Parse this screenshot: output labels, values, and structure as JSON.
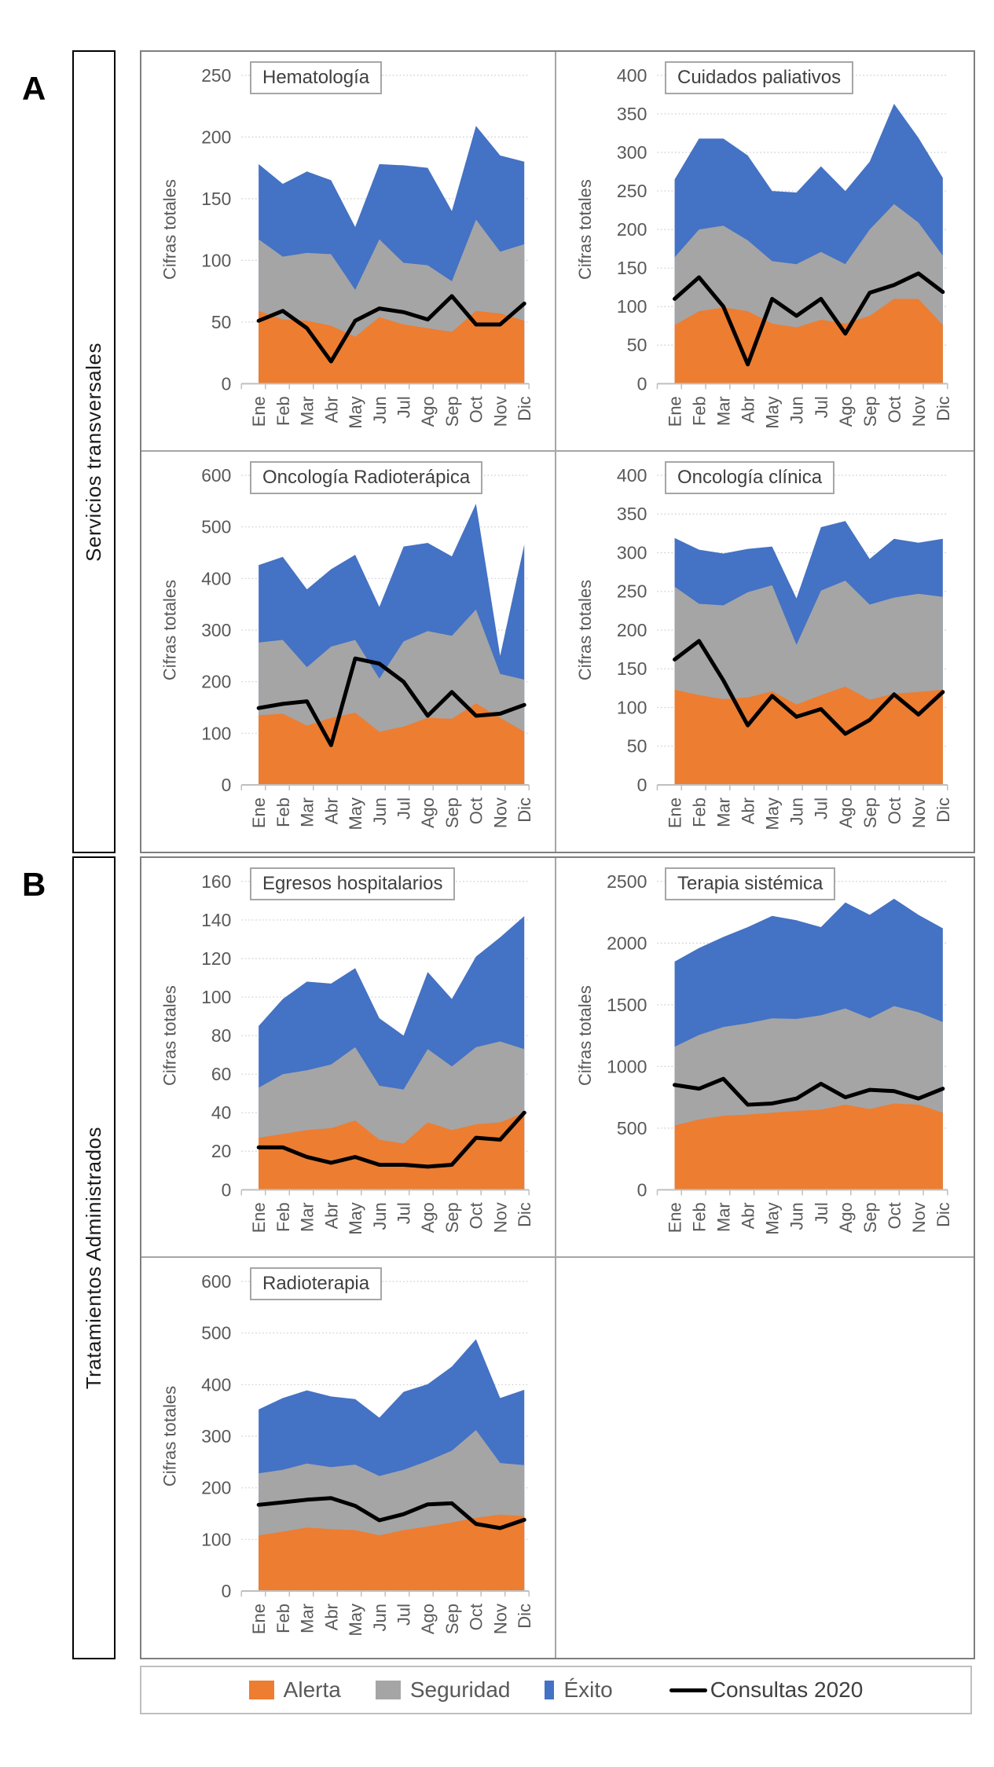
{
  "figure": {
    "type": "multi-panel stacked area charts",
    "background": "#FFFFFF"
  },
  "panels": [
    {
      "letter": "A",
      "label": "Servicios transversales"
    },
    {
      "letter": "B",
      "label": "Tratamientos Administrados"
    }
  ],
  "colors": {
    "alerta": "#ED7D31",
    "seguridad": "#A5A5A5",
    "exito": "#4472C4",
    "consultas": "#000000",
    "grid": "#C9C9C9",
    "axis_text": "#595959",
    "axis_line": "#BFBFBF",
    "title_text": "#404040",
    "panel_border": "#7F7F7F",
    "cell_border": "#A6A6A6"
  },
  "legend": {
    "items": [
      {
        "label": "Alerta",
        "swatch": "orange-square",
        "color": "#ED7D31"
      },
      {
        "label": "Seguridad",
        "swatch": "gray-square",
        "color": "#A5A5A5"
      },
      {
        "label": "Éxito",
        "swatch": "blue-bar",
        "color": "#4472C4"
      },
      {
        "label": "Consultas 2020",
        "swatch": "black-line",
        "color": "#000000"
      }
    ]
  },
  "chart_data": {
    "type": "area",
    "subtype": "stacked-area-with-line-overlay",
    "categories": [
      "Ene",
      "Feb",
      "Mar",
      "Abr",
      "May",
      "Jun",
      "Jul",
      "Ago",
      "Sep",
      "Oct",
      "Nov",
      "Dic"
    ],
    "ylabel": "Cifras totales",
    "grid": "dotted horizontal gridlines",
    "legend_position": "bottom",
    "stacked_series_names": [
      "Alerta",
      "Seguridad",
      "Éxito"
    ],
    "line_series_name": "Consultas 2020",
    "charts": [
      {
        "title": "Hematología",
        "panel": "A",
        "ymax": 250,
        "ystep": 50,
        "ylim": [
          0,
          250
        ],
        "series": {
          "alerta": [
            59,
            52,
            51,
            47,
            38,
            54,
            48,
            45,
            42,
            59,
            57,
            51
          ],
          "seguridad": [
            58,
            51,
            55,
            58,
            38,
            63,
            50,
            51,
            41,
            74,
            50,
            62
          ],
          "exito": [
            61,
            59,
            66,
            60,
            51,
            61,
            79,
            79,
            57,
            76,
            78,
            67
          ],
          "consultas_2020": [
            51,
            59,
            45,
            18,
            51,
            61,
            58,
            52,
            71,
            48,
            48,
            65
          ]
        }
      },
      {
        "title": "Cuidados paliativos",
        "panel": "A",
        "ymax": 400,
        "ystep": 50,
        "ylim": [
          0,
          400
        ],
        "series": {
          "alerta": [
            76,
            94,
            99,
            94,
            78,
            73,
            83,
            78,
            88,
            110,
            110,
            76
          ],
          "seguridad": [
            88,
            106,
            106,
            92,
            81,
            82,
            88,
            77,
            112,
            123,
            99,
            90
          ],
          "exito": [
            101,
            118,
            113,
            110,
            91,
            93,
            111,
            95,
            88,
            130,
            110,
            101
          ],
          "consultas_2020": [
            110,
            138,
            100,
            25,
            110,
            88,
            110,
            65,
            118,
            128,
            143,
            119
          ]
        }
      },
      {
        "title": "Oncología Radioterápica",
        "panel": "A",
        "ymax": 600,
        "ystep": 100,
        "ylim": [
          0,
          600
        ],
        "series": {
          "alerta": [
            135,
            138,
            115,
            130,
            140,
            103,
            113,
            130,
            128,
            158,
            130,
            103
          ],
          "seguridad": [
            141,
            143,
            113,
            138,
            141,
            103,
            165,
            168,
            161,
            182,
            85,
            101
          ],
          "exito": [
            150,
            161,
            151,
            150,
            165,
            139,
            184,
            171,
            154,
            205,
            35,
            262
          ],
          "consultas_2020": [
            149,
            157,
            162,
            77,
            245,
            235,
            200,
            134,
            180,
            134,
            138,
            155
          ]
        }
      },
      {
        "title": "Oncología clínica",
        "panel": "A",
        "ymax": 400,
        "ystep": 50,
        "ylim": [
          0,
          400
        ],
        "series": {
          "alerta": [
            123,
            116,
            111,
            113,
            121,
            104,
            116,
            127,
            110,
            118,
            120,
            123
          ],
          "seguridad": [
            133,
            118,
            121,
            136,
            137,
            77,
            135,
            137,
            123,
            124,
            127,
            120
          ],
          "exito": [
            63,
            70,
            67,
            56,
            50,
            60,
            82,
            77,
            59,
            76,
            66,
            75
          ],
          "consultas_2020": [
            162,
            186,
            135,
            77,
            115,
            88,
            98,
            66,
            84,
            117,
            91,
            120
          ]
        }
      },
      {
        "title": "Egresos hospitalarios",
        "panel": "B",
        "ymax": 160,
        "ystep": 20,
        "ylim": [
          0,
          160
        ],
        "series": {
          "alerta": [
            27,
            29,
            31,
            32,
            36,
            26,
            24,
            35,
            31,
            34,
            35,
            40
          ],
          "seguridad": [
            26,
            31,
            31,
            33,
            38,
            28,
            28,
            38,
            33,
            40,
            42,
            33
          ],
          "exito": [
            32,
            39,
            46,
            42,
            41,
            35,
            28,
            40,
            35,
            47,
            54,
            69
          ],
          "consultas_2020": [
            22,
            22,
            17,
            14,
            17,
            13,
            13,
            12,
            13,
            27,
            26,
            40
          ]
        }
      },
      {
        "title": "Terapia sistémica",
        "panel": "B",
        "ymax": 2500,
        "ystep": 500,
        "ylim": [
          0,
          2500
        ],
        "series": {
          "alerta": [
            520,
            570,
            600,
            610,
            625,
            640,
            650,
            690,
            655,
            700,
            690,
            625
          ],
          "seguridad": [
            640,
            685,
            720,
            740,
            765,
            745,
            765,
            780,
            735,
            790,
            750,
            735
          ],
          "exito": [
            690,
            705,
            730,
            780,
            830,
            800,
            715,
            860,
            840,
            870,
            790,
            760
          ],
          "consultas_2020": [
            850,
            820,
            900,
            690,
            700,
            740,
            860,
            750,
            810,
            800,
            740,
            820
          ]
        }
      },
      {
        "title": "Radioterapia",
        "panel": "B",
        "ymax": 600,
        "ystep": 100,
        "ylim": [
          0,
          600
        ],
        "series": {
          "alerta": [
            108,
            115,
            123,
            120,
            118,
            108,
            118,
            125,
            133,
            142,
            148,
            145
          ],
          "seguridad": [
            120,
            120,
            124,
            120,
            127,
            115,
            117,
            127,
            139,
            170,
            100,
            99
          ],
          "exito": [
            124,
            139,
            142,
            137,
            127,
            113,
            151,
            149,
            163,
            176,
            126,
            146
          ],
          "consultas_2020": [
            167,
            172,
            177,
            180,
            165,
            137,
            149,
            168,
            170,
            130,
            122,
            138
          ]
        }
      }
    ]
  }
}
